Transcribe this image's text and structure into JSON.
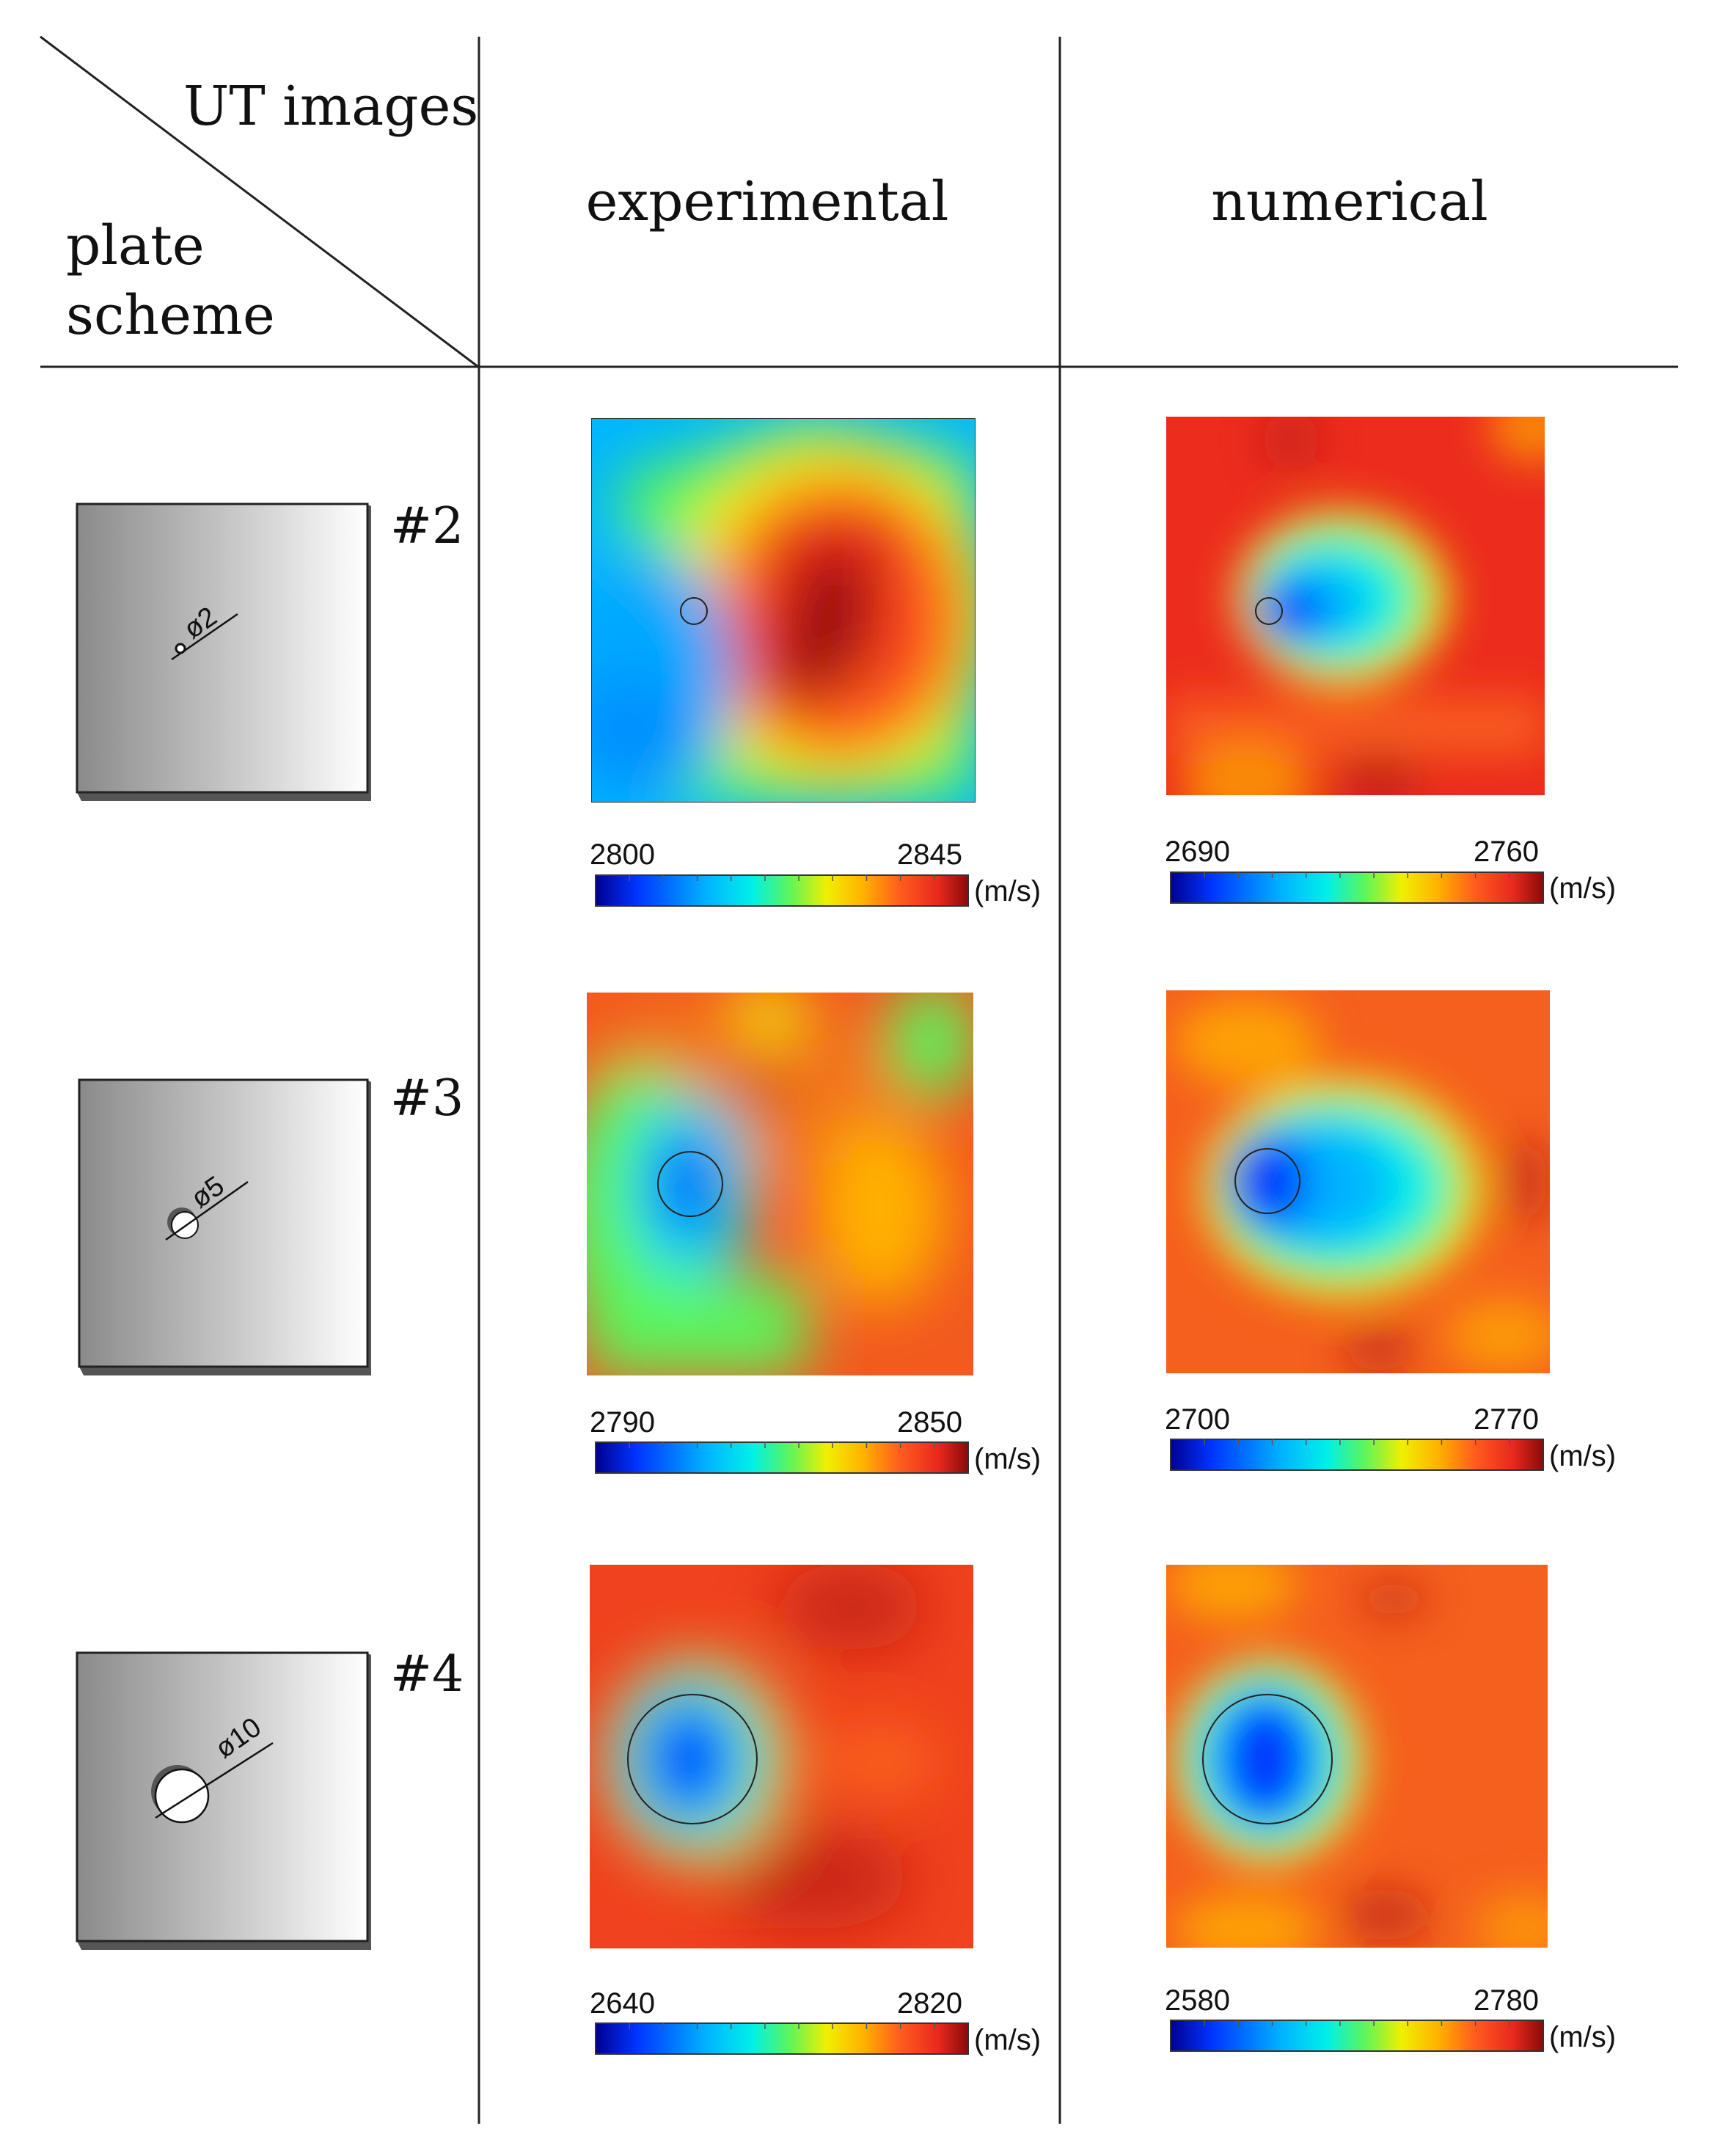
{
  "header": {
    "corner_top": "UT images",
    "corner_bottom_line1": "plate",
    "corner_bottom_line2": "scheme",
    "col_experimental": "experimental",
    "col_numerical": "numerical"
  },
  "colormap": [
    "#00008f",
    "#0034ff",
    "#00b4ff",
    "#00f0e8",
    "#5cf55c",
    "#f0f000",
    "#ffb000",
    "#ff5a1e",
    "#e8281e",
    "#8a0a0a"
  ],
  "rows": [
    {
      "id": "#2",
      "diameter_label": "ø2",
      "hole_diameter_mm": 2,
      "experimental": {
        "scale_min": "2800",
        "scale_max": "2845",
        "unit": "(m/s)"
      },
      "numerical": {
        "scale_min": "2690",
        "scale_max": "2760",
        "unit": "(m/s)"
      }
    },
    {
      "id": "#3",
      "diameter_label": "ø5",
      "hole_diameter_mm": 5,
      "experimental": {
        "scale_min": "2790",
        "scale_max": "2850",
        "unit": "(m/s)"
      },
      "numerical": {
        "scale_min": "2700",
        "scale_max": "2770",
        "unit": "(m/s)"
      }
    },
    {
      "id": "#4",
      "diameter_label": "ø10",
      "hole_diameter_mm": 10,
      "experimental": {
        "scale_min": "2640",
        "scale_max": "2820",
        "unit": "(m/s)"
      },
      "numerical": {
        "scale_min": "2580",
        "scale_max": "2780",
        "unit": "(m/s)"
      }
    }
  ]
}
